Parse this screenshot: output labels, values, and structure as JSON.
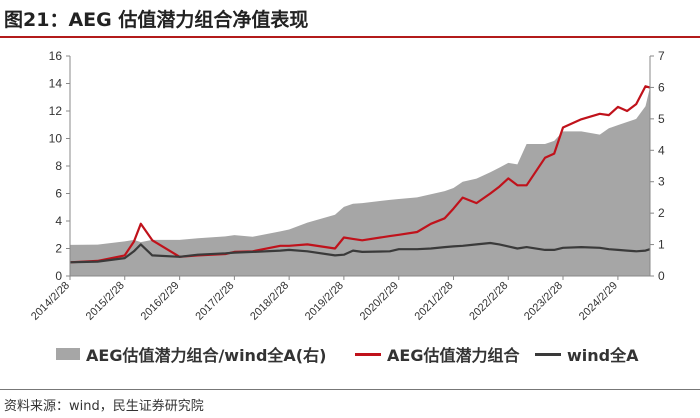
{
  "title": "图21：AEG 估值潜力组合净值表现",
  "source": "资料来源：wind，民生证券研究院",
  "colors": {
    "portfolio": "#c0121b",
    "benchmark": "#3a3a3a",
    "ratio": "#a6a6a6",
    "title_rule": "#b31b1b"
  },
  "legend": [
    {
      "label": "AEG估值潜力组合/wind全A(右)",
      "kind": "area",
      "color": "#a6a6a6"
    },
    {
      "label": "AEG估值潜力组合",
      "kind": "line",
      "color": "#c0121b"
    },
    {
      "label": "wind全A",
      "kind": "line",
      "color": "#3a3a3a"
    }
  ],
  "chart_data": {
    "type": "line",
    "title": "AEG 估值潜力组合净值表现",
    "xlabel": "",
    "ylabel": "",
    "ylim": [
      0,
      16
    ],
    "y2lim": [
      0,
      7
    ],
    "y_ticks": [
      0,
      2,
      4,
      6,
      8,
      10,
      12,
      14,
      16
    ],
    "y2_ticks": [
      0,
      1,
      2,
      3,
      4,
      5,
      6,
      7
    ],
    "x_tick_labels": [
      "2014/2/28",
      "2015/2/28",
      "2016/2/29",
      "2017/2/28",
      "2018/2/28",
      "2019/2/28",
      "2020/2/29",
      "2021/2/28",
      "2022/2/28",
      "2023/2/28",
      "2024/2/29"
    ],
    "x_start": "2014/2/28",
    "x_end": "2024/9/30",
    "grid": false,
    "legend_position": "bottom",
    "x": [
      "2014/2/28",
      "2014/8/31",
      "2015/2/28",
      "2015/4/30",
      "2015/6/15",
      "2015/8/31",
      "2016/2/29",
      "2016/6/30",
      "2016/12/31",
      "2017/2/28",
      "2017/6/30",
      "2017/12/31",
      "2018/2/28",
      "2018/6/30",
      "2018/12/31",
      "2019/2/28",
      "2019/4/30",
      "2019/6/30",
      "2019/12/31",
      "2020/2/29",
      "2020/6/30",
      "2020/9/30",
      "2020/12/31",
      "2021/2/28",
      "2021/4/30",
      "2021/7/31",
      "2021/10/31",
      "2021/12/31",
      "2022/2/28",
      "2022/4/30",
      "2022/6/30",
      "2022/10/31",
      "2022/12/31",
      "2023/2/28",
      "2023/6/30",
      "2023/10/31",
      "2023/12/31",
      "2024/2/29",
      "2024/4/30",
      "2024/6/30",
      "2024/8/31",
      "2024/9/30"
    ],
    "series": [
      {
        "name": "AEG估值潜力组合/wind全A(右)",
        "axis": "right",
        "kind": "area",
        "values": [
          0.99,
          1.0,
          1.1,
          1.15,
          1.08,
          1.15,
          1.15,
          1.2,
          1.26,
          1.3,
          1.25,
          1.42,
          1.48,
          1.7,
          1.95,
          2.2,
          2.3,
          2.32,
          2.42,
          2.45,
          2.5,
          2.6,
          2.7,
          2.8,
          3.0,
          3.1,
          3.3,
          3.45,
          3.6,
          3.55,
          4.2,
          4.2,
          4.3,
          4.6,
          4.6,
          4.5,
          4.7,
          4.8,
          4.9,
          5.0,
          5.4,
          6.0
        ]
      },
      {
        "name": "AEG估值潜力组合",
        "axis": "left",
        "kind": "line",
        "values": [
          1.0,
          1.1,
          1.5,
          2.5,
          3.8,
          2.6,
          1.4,
          1.5,
          1.6,
          1.75,
          1.8,
          2.2,
          2.2,
          2.3,
          2.0,
          2.8,
          2.7,
          2.6,
          2.9,
          3.0,
          3.2,
          3.8,
          4.2,
          4.9,
          5.7,
          5.3,
          6.0,
          6.5,
          7.1,
          6.6,
          6.6,
          8.6,
          8.9,
          10.8,
          11.4,
          11.8,
          11.7,
          12.3,
          12.0,
          12.5,
          13.8,
          13.7
        ]
      },
      {
        "name": "wind全A",
        "axis": "left",
        "kind": "line",
        "values": [
          1.0,
          1.05,
          1.3,
          1.8,
          2.3,
          1.5,
          1.4,
          1.55,
          1.65,
          1.7,
          1.75,
          1.85,
          1.9,
          1.8,
          1.5,
          1.55,
          1.85,
          1.75,
          1.8,
          1.95,
          1.95,
          2.0,
          2.1,
          2.15,
          2.2,
          2.3,
          2.4,
          2.3,
          2.15,
          2.0,
          2.1,
          1.9,
          1.9,
          2.05,
          2.1,
          2.05,
          1.95,
          1.9,
          1.85,
          1.8,
          1.85,
          1.95
        ]
      }
    ]
  }
}
